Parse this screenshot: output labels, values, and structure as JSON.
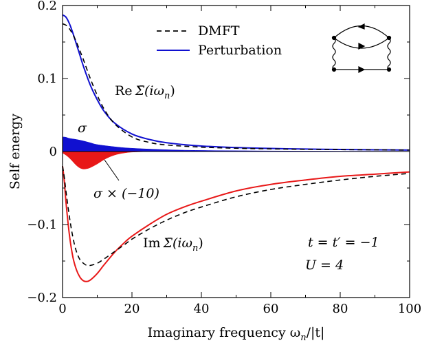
{
  "chart_data": {
    "type": "line",
    "xlabel": "Imaginary frequency ω",
    "xlabel_sub": "n",
    "xlabel_tail": "/|t|",
    "ylabel": "Self energy",
    "xlim": [
      0,
      100
    ],
    "ylim": [
      -0.2,
      0.2
    ],
    "xticks": [
      0,
      20,
      40,
      60,
      80,
      100
    ],
    "xtick_labels": [
      "0",
      "20",
      "40",
      "60",
      "80",
      "100"
    ],
    "yticks": [
      -0.2,
      -0.1,
      0,
      0.1,
      0.2
    ],
    "ytick_labels": [
      "−0.2",
      "−0.1",
      "0",
      "0.1",
      "0.2"
    ],
    "grid": false,
    "legend": {
      "position": "top-center",
      "entries": [
        {
          "name": "DMFT",
          "style": "dashed",
          "color": "#000000"
        },
        {
          "name": "Perturbation",
          "style": "solid",
          "color": "#1010d0"
        }
      ]
    },
    "colors": {
      "blue": "#1010d0",
      "red": "#e81818",
      "black": "#000000"
    },
    "series": [
      {
        "label_prefix": "Re",
        "label_symbol": "Σ̄(iω",
        "label_sub": "n",
        "label_close": ")",
        "kind": "perturbation-real",
        "x": [
          0,
          1,
          2,
          3,
          4,
          5,
          6,
          8,
          10,
          12,
          15,
          20,
          25,
          30,
          40,
          50,
          60,
          70,
          80,
          90,
          100
        ],
        "y": [
          0.187,
          0.184,
          0.175,
          0.162,
          0.147,
          0.132,
          0.117,
          0.091,
          0.071,
          0.055,
          0.039,
          0.024,
          0.0165,
          0.012,
          0.0075,
          0.0055,
          0.0042,
          0.0034,
          0.0028,
          0.0024,
          0.002
        ]
      },
      {
        "kind": "dmft-real",
        "x": [
          0,
          1,
          2,
          3,
          4,
          5,
          6,
          8,
          10,
          12,
          15,
          20,
          25,
          30,
          40,
          50,
          60,
          70,
          80,
          90,
          100
        ],
        "y": [
          0.175,
          0.173,
          0.168,
          0.16,
          0.15,
          0.138,
          0.126,
          0.1,
          0.077,
          0.058,
          0.038,
          0.02,
          0.0125,
          0.009,
          0.006,
          0.0045,
          0.0036,
          0.003,
          0.0026,
          0.0023,
          0.002
        ]
      },
      {
        "label_prefix": "Im",
        "label_symbol": "Σ̄(iω",
        "label_sub": "n",
        "label_close": ")",
        "kind": "perturbation-imag",
        "x": [
          0,
          0.5,
          1,
          2,
          3,
          4,
          5,
          6,
          7,
          8,
          10,
          12,
          15,
          18,
          20,
          25,
          30,
          35,
          40,
          50,
          60,
          70,
          80,
          90,
          100
        ],
        "y": [
          -0.02,
          -0.04,
          -0.07,
          -0.115,
          -0.145,
          -0.162,
          -0.172,
          -0.177,
          -0.178,
          -0.176,
          -0.167,
          -0.155,
          -0.138,
          -0.124,
          -0.116,
          -0.1,
          -0.086,
          -0.076,
          -0.068,
          -0.054,
          -0.045,
          -0.039,
          -0.034,
          -0.031,
          -0.028
        ]
      },
      {
        "kind": "dmft-imag",
        "x": [
          0,
          0.5,
          1,
          2,
          3,
          4,
          5,
          6,
          7,
          8,
          10,
          12,
          15,
          18,
          20,
          25,
          30,
          35,
          40,
          50,
          60,
          70,
          80,
          90,
          100
        ],
        "y": [
          -0.02,
          -0.035,
          -0.055,
          -0.09,
          -0.118,
          -0.137,
          -0.148,
          -0.153,
          -0.156,
          -0.156,
          -0.153,
          -0.147,
          -0.137,
          -0.127,
          -0.12,
          -0.106,
          -0.094,
          -0.084,
          -0.076,
          -0.062,
          -0.052,
          -0.045,
          -0.039,
          -0.034,
          -0.03
        ]
      },
      {
        "label": "σ",
        "kind": "sigma-fill",
        "x": [
          0,
          1,
          2,
          4,
          6,
          8,
          10,
          15,
          20,
          30,
          40,
          60,
          80,
          100
        ],
        "y": [
          0.02,
          0.0195,
          0.018,
          0.0165,
          0.0145,
          0.012,
          0.0095,
          0.0065,
          0.0045,
          0.0025,
          0.0015,
          0.0008,
          0.0005,
          0.0003
        ]
      },
      {
        "label": "σ × (−10)",
        "kind": "sigma-neg-fill",
        "x": [
          0,
          1,
          2,
          3,
          4,
          5,
          6,
          7,
          8,
          10,
          12,
          14,
          16,
          18,
          20,
          25
        ],
        "y": [
          -0.002,
          -0.005,
          -0.009,
          -0.014,
          -0.019,
          -0.0225,
          -0.024,
          -0.0235,
          -0.022,
          -0.017,
          -0.011,
          -0.0065,
          -0.0035,
          -0.0018,
          -0.0008,
          0
        ]
      }
    ],
    "annotations": {
      "t_equals": "t = t′ = −1",
      "U_equals": "U = 4"
    }
  }
}
